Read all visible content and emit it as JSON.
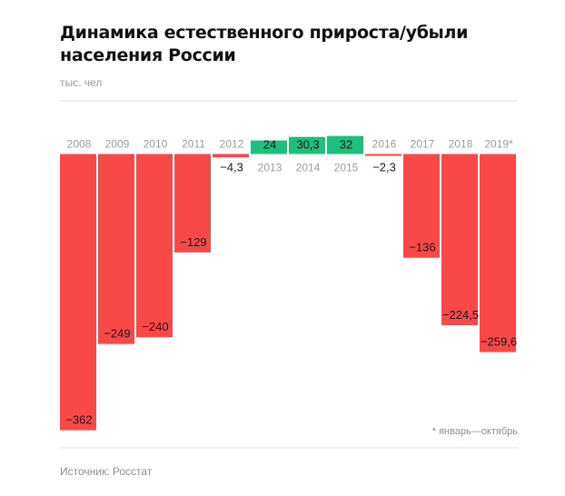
{
  "title": "Динамика естественного прироста/убыли населения России",
  "unit": "тыс. чел",
  "footnote": "* январь—октябрь",
  "source": "Источник: Росстат",
  "colors": {
    "negative": "#f94848",
    "positive": "#1ebe7c",
    "axis_text": "#9b9b9b",
    "label_text": "#1a1a1a"
  },
  "chart_data": {
    "type": "bar",
    "title": "Динамика естественного прироста/убыли населения России",
    "ylabel": "тыс. чел",
    "xlabel": "",
    "categories": [
      "2008",
      "2009",
      "2010",
      "2011",
      "2012",
      "2013",
      "2014",
      "2015",
      "2016",
      "2017",
      "2018",
      "2019*"
    ],
    "values": [
      -362,
      -249,
      -240,
      -129,
      -4.3,
      24,
      30.3,
      32,
      -2.3,
      -136,
      -224.5,
      -259.6
    ],
    "value_labels": [
      "−362",
      "−249",
      "−240",
      "−129",
      "−4,3",
      "24",
      "30,3",
      "32",
      "−2,3",
      "−136",
      "−224,5",
      "−259,6"
    ],
    "ylim": [
      -362,
      32
    ],
    "grid": false,
    "legend": "none"
  }
}
